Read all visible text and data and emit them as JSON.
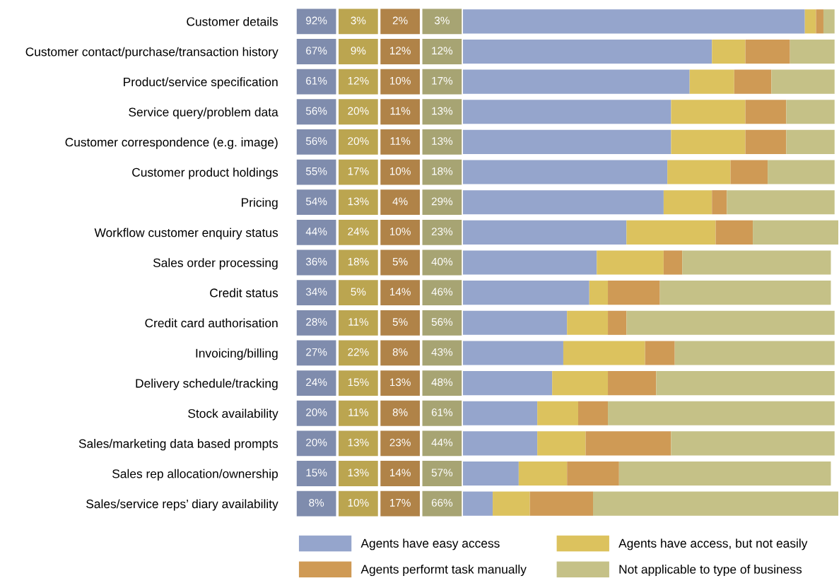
{
  "chart_data": {
    "type": "bar",
    "orientation": "horizontal",
    "stacked": true,
    "legend": "bottom",
    "categories": [
      "Customer details",
      "Customer contact/purchase/transaction history",
      "Product/service specification",
      "Service query/problem data",
      "Customer correspondence (e.g. image)",
      "Customer product holdings",
      "Pricing",
      "Workflow customer enquiry status",
      "Sales order processing",
      "Credit status",
      "Credit card authorisation",
      "Invoicing/billing",
      "Delivery schedule/tracking",
      "Stock availability",
      "Sales/marketing data based prompts",
      "Sales rep allocation/ownership",
      "Sales/service reps’ diary availability"
    ],
    "series": [
      {
        "name": "Agents have easy access",
        "color": "#95a5cc",
        "values": [
          92,
          67,
          61,
          56,
          56,
          55,
          54,
          44,
          36,
          34,
          28,
          27,
          24,
          20,
          20,
          15,
          8
        ],
        "value_labels": [
          "92%",
          "67%",
          "61%",
          "56%",
          "56%",
          "55%",
          "54%",
          "44%",
          "36%",
          "34%",
          "28%",
          "27%",
          "24%",
          "20%",
          "20%",
          "15%",
          "8%"
        ]
      },
      {
        "name": "Agents have access, but not easily",
        "color": "#dcc25e",
        "values": [
          3,
          9,
          12,
          20,
          20,
          17,
          13,
          24,
          18,
          5,
          11,
          22,
          15,
          11,
          13,
          13,
          10
        ],
        "value_labels": [
          "3%",
          "9%",
          "12%",
          "20%",
          "20%",
          "17%",
          "13%",
          "24%",
          "18%",
          "5%",
          "11%",
          "22%",
          "15%",
          "11%",
          "13%",
          "13%",
          "10%"
        ]
      },
      {
        "name": "Agents performt task manually",
        "color": "#cf9a55",
        "values": [
          2,
          12,
          10,
          11,
          11,
          10,
          4,
          10,
          5,
          14,
          5,
          8,
          13,
          8,
          23,
          14,
          17
        ],
        "value_labels": [
          "2%",
          "12%",
          "10%",
          "11%",
          "11%",
          "10%",
          "4%",
          "10%",
          "5%",
          "14%",
          "5%",
          "8%",
          "13%",
          "8%",
          "23%",
          "14%",
          "17%"
        ]
      },
      {
        "name": "Not applicable to type of business",
        "color": "#c5c187",
        "values": [
          3,
          12,
          17,
          13,
          13,
          18,
          29,
          23,
          40,
          46,
          56,
          43,
          48,
          61,
          44,
          57,
          66
        ],
        "value_labels": [
          "3%",
          "12%",
          "17%",
          "13%",
          "13%",
          "18%",
          "29%",
          "23%",
          "40%",
          "46%",
          "56%",
          "43%",
          "48%",
          "61%",
          "44%",
          "57%",
          "66%"
        ]
      }
    ]
  }
}
